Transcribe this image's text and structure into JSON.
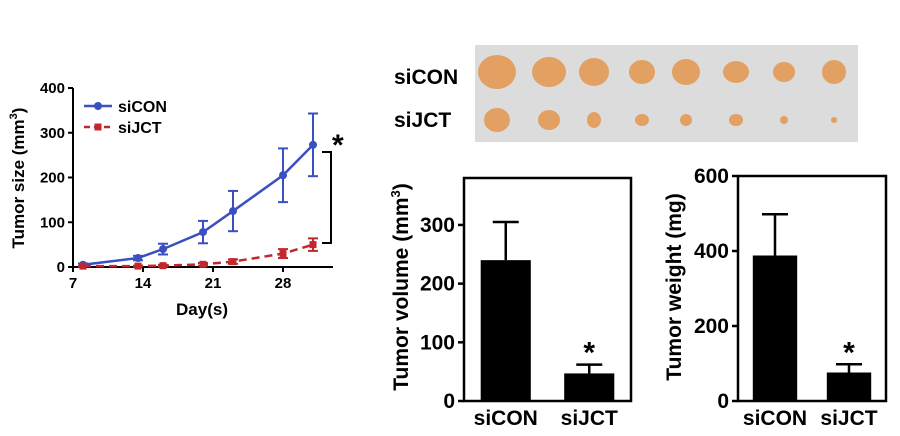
{
  "panels": {
    "photo": {
      "row_labels": [
        "siCON",
        "siJCT"
      ],
      "background_color": "#dcdcdc",
      "tumor_color": "#e2a063"
    }
  },
  "chart_data": [
    {
      "type": "line",
      "ylabel_main": "Tumor size (mm",
      "ylabel_sup": "3",
      "ylabel_close": ")",
      "xlabel": "Day(s)",
      "xlim": [
        7,
        33
      ],
      "ylim": [
        0,
        400
      ],
      "xticks": [
        7,
        14,
        21,
        28
      ],
      "yticks": [
        0,
        100,
        200,
        300,
        400
      ],
      "legend": "top-left",
      "significance": "*",
      "series": [
        {
          "name": "siCON",
          "color": "#3a4fc2",
          "style": "solid",
          "marker": "circle",
          "x": [
            8,
            13.5,
            16,
            20,
            23,
            28,
            31
          ],
          "y": [
            5,
            20,
            40,
            78,
            125,
            205,
            273
          ],
          "err": [
            3,
            5,
            12,
            25,
            45,
            60,
            70
          ]
        },
        {
          "name": "siJCT",
          "color": "#c0282d",
          "style": "dashed",
          "marker": "square",
          "x": [
            8,
            13.5,
            16,
            20,
            23,
            28,
            31
          ],
          "y": [
            2,
            2,
            3,
            6,
            12,
            30,
            50
          ],
          "err": [
            1,
            1,
            2,
            3,
            5,
            10,
            14
          ]
        }
      ]
    },
    {
      "type": "bar",
      "ylabel_main": "Tumor volume (mm",
      "ylabel_sup": "3",
      "ylabel_close": ")",
      "categories": [
        "siCON",
        "siJCT"
      ],
      "values": [
        240,
        47
      ],
      "errors": [
        65,
        15
      ],
      "ylim": [
        0,
        380
      ],
      "yticks": [
        0,
        100,
        200,
        300
      ],
      "significance": "*",
      "color": "#000000"
    },
    {
      "type": "bar",
      "ylabel_main": "Tumor weight (mg)",
      "categories": [
        "siCON",
        "siJCT"
      ],
      "values": [
        388,
        76
      ],
      "errors": [
        110,
        22
      ],
      "ylim": [
        0,
        600
      ],
      "yticks": [
        0,
        200,
        400,
        600
      ],
      "significance": "*",
      "color": "#000000"
    }
  ]
}
